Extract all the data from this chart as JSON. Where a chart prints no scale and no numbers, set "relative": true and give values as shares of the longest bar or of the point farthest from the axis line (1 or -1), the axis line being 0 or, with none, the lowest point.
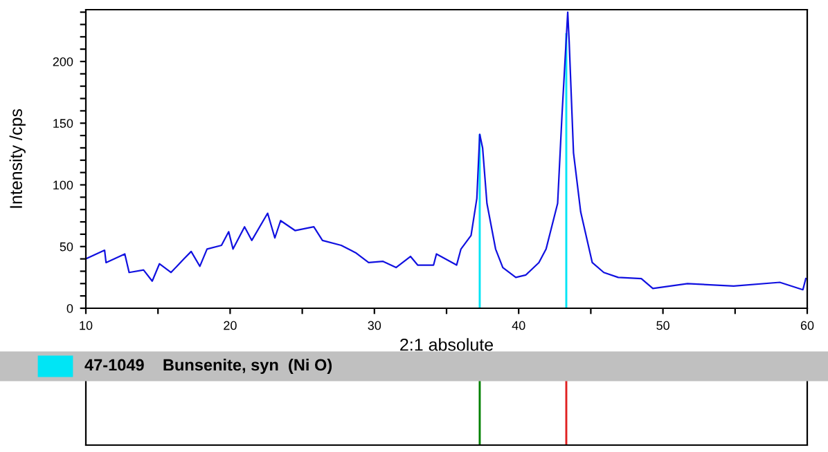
{
  "chart_data": [
    {
      "type": "line",
      "xlabel": "2:1 absolute",
      "ylabel": "Intensity /cps",
      "xlim": [
        10,
        60
      ],
      "ylim": [
        0,
        242
      ],
      "xticks": [
        10,
        {
          "value": 15,
          "label": null
        },
        20,
        {
          "value": 25,
          "label": null
        },
        30,
        {
          "value": 35,
          "label": null
        },
        40,
        {
          "value": 45,
          "label": null
        },
        50,
        {
          "value": 55,
          "label": null
        },
        60
      ],
      "yticks": [
        0,
        {
          "value": 10,
          "label": null
        },
        {
          "value": 20,
          "label": null
        },
        {
          "value": 30,
          "label": null
        },
        {
          "value": 40,
          "label": null
        },
        50,
        {
          "value": 60,
          "label": null
        },
        {
          "value": 70,
          "label": null
        },
        {
          "value": 80,
          "label": null
        },
        {
          "value": 90,
          "label": null
        },
        100,
        {
          "value": 110,
          "label": null
        },
        {
          "value": 120,
          "label": null
        },
        {
          "value": 130,
          "label": null
        },
        {
          "value": 140,
          "label": null
        },
        150,
        {
          "value": 160,
          "label": null
        },
        {
          "value": 170,
          "label": null
        },
        {
          "value": 180,
          "label": null
        },
        {
          "value": 190,
          "label": null
        },
        200,
        {
          "value": 210,
          "label": null
        },
        {
          "value": 220,
          "label": null
        },
        {
          "value": 230,
          "label": null
        },
        {
          "value": 240,
          "label": null
        }
      ],
      "grid": false,
      "legend": "bottom",
      "series": [
        {
          "type": "line",
          "color": "#1010e0",
          "x": [
            10,
            11.3,
            11.4,
            12.7,
            13.0,
            14.0,
            14.6,
            15.1,
            15.9,
            16.8,
            17.3,
            17.9,
            18.4,
            19.4,
            19.9,
            20.2,
            21.0,
            21.5,
            22.6,
            23.1,
            23.5,
            24.5,
            25.8,
            26.4,
            27.7,
            28.7,
            29.6,
            30.6,
            31.5,
            32.5,
            33.0,
            34.1,
            34.3,
            35.7,
            36.0,
            36.7,
            37.1,
            37.3,
            37.5,
            37.8,
            38.4,
            38.9,
            39.8,
            40.5,
            41.4,
            41.9,
            42.7,
            43.0,
            43.4,
            43.5,
            43.8,
            44.3,
            45.1,
            45.9,
            46.9,
            48.5,
            49.3,
            51.7,
            54.9,
            58.1,
            59.7,
            59.9
          ],
          "values": [
            40,
            47,
            37,
            44,
            29,
            31,
            22,
            36,
            29,
            40,
            46,
            34,
            48,
            51,
            62,
            48,
            66,
            55,
            77,
            57,
            71,
            63,
            66,
            55,
            51,
            45,
            37,
            38,
            33,
            42,
            35,
            35,
            44,
            35,
            48,
            59,
            89,
            141,
            130,
            85,
            48,
            33,
            25,
            27,
            37,
            48,
            85,
            156,
            240,
            216,
            126,
            78,
            37,
            29,
            25,
            24,
            16,
            20,
            18,
            21,
            15,
            24
          ]
        },
        {
          "type": "bar",
          "name": "47-1049    Bunsenite, syn  (Ni O)",
          "color": "#00e5f5",
          "x": [
            37.3,
            43.3
          ],
          "values": [
            141,
            223
          ]
        }
      ]
    },
    {
      "type": "bar",
      "relative": true,
      "x": [
        37.3,
        43.3
      ],
      "values": [
        1,
        1
      ],
      "colors": [
        "#008000",
        "#e02020"
      ],
      "xlim": [
        10,
        60
      ],
      "xticks": [
        10,
        20,
        30,
        40,
        50,
        60
      ],
      "tick_labels": false
    }
  ]
}
